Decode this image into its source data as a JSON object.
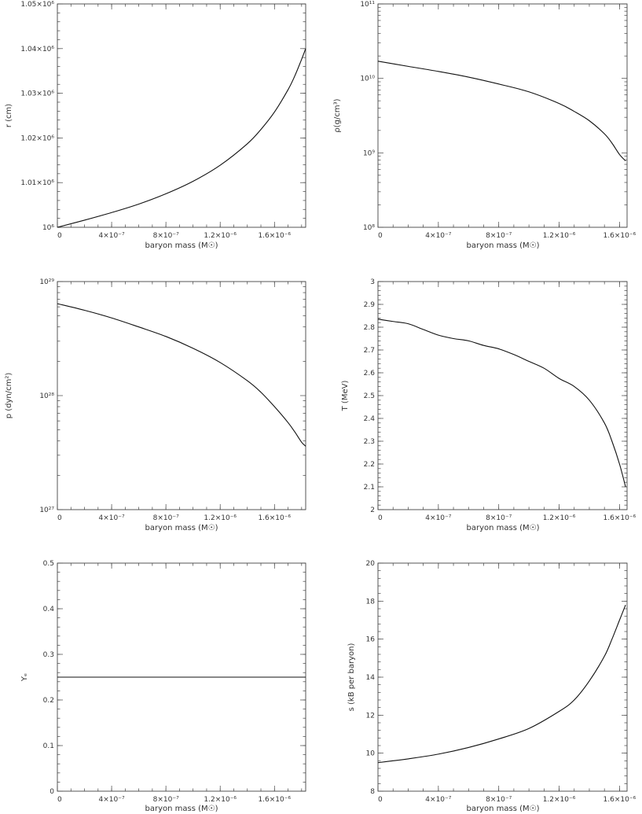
{
  "chart_data": [
    {
      "id": "radius",
      "type": "line",
      "xlabel": "baryon mass (M☉)",
      "ylabel": "r (cm)",
      "xlim": [
        0,
        1.83e-06
      ],
      "ylim": [
        1000000.0,
        1050000.0
      ],
      "yscale": "linear",
      "grid": false,
      "x_tick_labels": [
        "0",
        "4×10⁻⁷",
        "8×10⁻⁷",
        "1.2×10⁻⁶",
        "1.6×10⁻⁶"
      ],
      "x_ticks": [
        0,
        4e-07,
        8e-07,
        1.2e-06,
        1.6e-06
      ],
      "y_tick_labels": [
        "10⁶",
        "1.01×10⁶",
        "1.02×10⁶",
        "1.03×10⁶",
        "1.04×10⁶",
        "1.05×10⁶"
      ],
      "y_ticks": [
        1000000.0,
        1010000.0,
        1020000.0,
        1030000.0,
        1040000.0,
        1050000.0
      ],
      "x": [
        0,
        2e-07,
        4e-07,
        6e-07,
        8e-07,
        1e-06,
        1.2e-06,
        1.4e-06,
        1.5e-06,
        1.6e-06,
        1.7e-06,
        1.75e-06,
        1.8e-06,
        1.83e-06
      ],
      "y": [
        1000000,
        1001600,
        1003300,
        1005200,
        1007500,
        1010300,
        1013900,
        1018700,
        1021900,
        1025800,
        1030800,
        1033900,
        1037600,
        1040000
      ]
    },
    {
      "id": "density",
      "type": "line",
      "xlabel": "baryon mass (M☉)",
      "ylabel": "ρ(g/cm³)",
      "xlim": [
        0,
        1.65e-06
      ],
      "ylim": [
        100000000.0,
        100000000000.0
      ],
      "yscale": "log",
      "grid": false,
      "x_tick_labels": [
        "0",
        "4×10⁻⁷",
        "8×10⁻⁷",
        "1.2×10⁻⁶",
        "1.6×10⁻⁶"
      ],
      "x_ticks": [
        0,
        4e-07,
        8e-07,
        1.2e-06,
        1.6e-06
      ],
      "y_tick_labels": [
        "10⁸",
        "10⁹",
        "10¹⁰",
        "10¹¹"
      ],
      "y_ticks": [
        100000000.0,
        1000000000.0,
        10000000000.0,
        100000000000.0
      ],
      "x": [
        0,
        2e-07,
        4e-07,
        6e-07,
        8e-07,
        1e-06,
        1.2e-06,
        1.3e-06,
        1.4e-06,
        1.5e-06,
        1.55e-06,
        1.6e-06,
        1.64e-06
      ],
      "y": [
        17000000000,
        14500000000,
        12400000000,
        10400000000,
        8400000000,
        6600000000,
        4600000000,
        3600000000,
        2700000000,
        1800000000,
        1350000000,
        950000000,
        780000000
      ]
    },
    {
      "id": "pressure",
      "type": "line",
      "xlabel": "baryon mass (M☉)",
      "ylabel": "p (dyn/cm²)",
      "xlim": [
        0,
        1.83e-06
      ],
      "ylim": [
        1e+27,
        1e+29
      ],
      "yscale": "log",
      "grid": false,
      "x_tick_labels": [
        "0",
        "4×10⁻⁷",
        "8×10⁻⁷",
        "1.2×10⁻⁶",
        "1.6×10⁻⁶"
      ],
      "x_ticks": [
        0,
        4e-07,
        8e-07,
        1.2e-06,
        1.6e-06
      ],
      "y_tick_labels": [
        "10²⁷",
        "10²⁸",
        "10²⁹"
      ],
      "y_ticks": [
        1e+27,
        1e+28,
        1e+29
      ],
      "x": [
        0,
        2e-07,
        4e-07,
        6e-07,
        8e-07,
        1e-06,
        1.2e-06,
        1.4e-06,
        1.5e-06,
        1.6e-06,
        1.7e-06,
        1.75e-06,
        1.8e-06,
        1.83e-06
      ],
      "y": [
        6.4e+28,
        5.6e+28,
        4.8e+28,
        4e+28,
        3.3e+28,
        2.6e+28,
        1.95e+28,
        1.35e+28,
        1.07e+28,
        8e+27,
        5.8e+27,
        4.8e+27,
        3.9e+27,
        3.6e+27
      ]
    },
    {
      "id": "temperature",
      "type": "line",
      "xlabel": "baryon mass (M☉)",
      "ylabel": "T (MeV)",
      "xlim": [
        0,
        1.65e-06
      ],
      "ylim": [
        2,
        3
      ],
      "yscale": "linear",
      "grid": false,
      "x_tick_labels": [
        "0",
        "4×10⁻⁷",
        "8×10⁻⁷",
        "1.2×10⁻⁶",
        "1.6×10⁻⁶"
      ],
      "x_ticks": [
        0,
        4e-07,
        8e-07,
        1.2e-06,
        1.6e-06
      ],
      "y_tick_labels": [
        "2",
        "2.1",
        "2.2",
        "2.3",
        "2.4",
        "2.5",
        "2.6",
        "2.7",
        "2.8",
        "2.9",
        "3"
      ],
      "y_ticks": [
        2,
        2.1,
        2.2,
        2.3,
        2.4,
        2.5,
        2.6,
        2.7,
        2.8,
        2.9,
        3
      ],
      "x": [
        0,
        1e-07,
        2e-07,
        3e-07,
        4e-07,
        5e-07,
        6e-07,
        7e-07,
        8e-07,
        9e-07,
        1e-06,
        1.1e-06,
        1.2e-06,
        1.3e-06,
        1.4e-06,
        1.5e-06,
        1.55e-06,
        1.6e-06,
        1.64e-06
      ],
      "y": [
        2.835,
        2.825,
        2.815,
        2.79,
        2.765,
        2.75,
        2.74,
        2.72,
        2.705,
        2.68,
        2.65,
        2.62,
        2.575,
        2.54,
        2.48,
        2.38,
        2.3,
        2.2,
        2.1
      ]
    },
    {
      "id": "electron_fraction",
      "type": "line",
      "xlabel": "baryon mass (M☉)",
      "ylabel": "Yₑ",
      "xlim": [
        0,
        1.83e-06
      ],
      "ylim": [
        0,
        0.5
      ],
      "yscale": "linear",
      "grid": false,
      "x_tick_labels": [
        "0",
        "4×10⁻⁷",
        "8×10⁻⁷",
        "1.2×10⁻⁶",
        "1.6×10⁻⁶"
      ],
      "x_ticks": [
        0,
        4e-07,
        8e-07,
        1.2e-06,
        1.6e-06
      ],
      "y_tick_labels": [
        "0",
        "0.1",
        "0.2",
        "0.3",
        "0.4",
        "0.5"
      ],
      "y_ticks": [
        0,
        0.1,
        0.2,
        0.3,
        0.4,
        0.5
      ],
      "x": [
        0,
        1.83e-06
      ],
      "y": [
        0.25,
        0.25
      ]
    },
    {
      "id": "entropy",
      "type": "line",
      "xlabel": "baryon mass (M☉)",
      "ylabel": "s (kB per baryon)",
      "xlim": [
        0,
        1.65e-06
      ],
      "ylim": [
        8,
        20
      ],
      "yscale": "linear",
      "grid": false,
      "x_tick_labels": [
        "0",
        "4×10⁻⁷",
        "8×10⁻⁷",
        "1.2×10⁻⁶",
        "1.6×10⁻⁶"
      ],
      "x_ticks": [
        0,
        4e-07,
        8e-07,
        1.2e-06,
        1.6e-06
      ],
      "y_tick_labels": [
        "8",
        "10",
        "12",
        "14",
        "16",
        "18",
        "20"
      ],
      "y_ticks": [
        8,
        10,
        12,
        14,
        16,
        18,
        20
      ],
      "x": [
        0,
        1e-07,
        2e-07,
        4e-07,
        6e-07,
        8e-07,
        1e-06,
        1.2e-06,
        1.3e-06,
        1.4e-06,
        1.5e-06,
        1.55e-06,
        1.6e-06,
        1.64e-06
      ],
      "y": [
        9.5,
        9.6,
        9.7,
        9.95,
        10.3,
        10.75,
        11.3,
        12.2,
        12.8,
        13.8,
        15.1,
        16.0,
        17.0,
        17.8
      ]
    }
  ]
}
